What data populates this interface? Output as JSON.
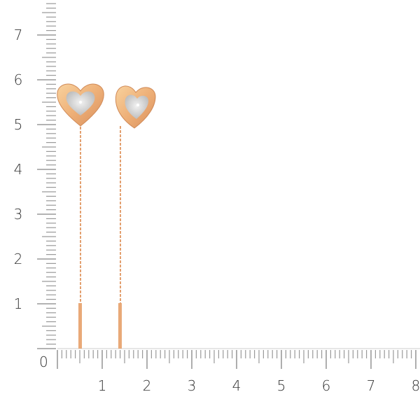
{
  "ruler": {
    "origin_label": "0",
    "x_labels": [
      "1",
      "2",
      "3",
      "4",
      "5",
      "6",
      "7",
      "8"
    ],
    "y_labels": [
      "1",
      "2",
      "3",
      "4",
      "5",
      "6",
      "7"
    ],
    "tick_color": "#9a9a9a",
    "label_color": "#333333"
  },
  "product": {
    "metal_color": "#e9a978",
    "inlay_color": "#d8d8d8",
    "item_count": 2
  }
}
